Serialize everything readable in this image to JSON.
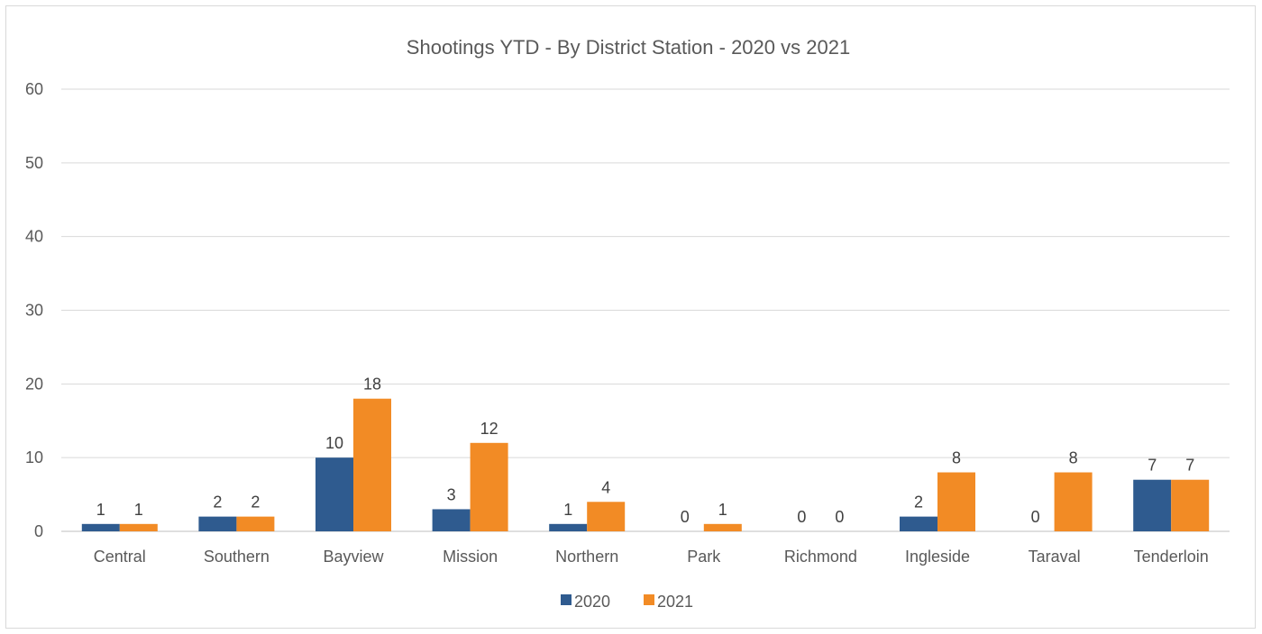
{
  "chart_data": {
    "type": "bar",
    "title": "Shootings YTD - By District Station - 2020 vs 2021",
    "xlabel": "",
    "ylabel": "",
    "ylim": [
      0,
      60
    ],
    "yticks": [
      0,
      10,
      20,
      30,
      40,
      50,
      60
    ],
    "grid": true,
    "legend_position": "bottom",
    "categories": [
      "Central",
      "Southern",
      "Bayview",
      "Mission",
      "Northern",
      "Park",
      "Richmond",
      "Ingleside",
      "Taraval",
      "Tenderloin"
    ],
    "series": [
      {
        "name": "2020",
        "color": "#2f5b8f",
        "values": [
          1,
          2,
          10,
          3,
          1,
          0,
          0,
          2,
          0,
          7
        ]
      },
      {
        "name": "2021",
        "color": "#f28b25",
        "values": [
          1,
          2,
          18,
          12,
          4,
          1,
          0,
          8,
          8,
          7
        ]
      }
    ]
  }
}
